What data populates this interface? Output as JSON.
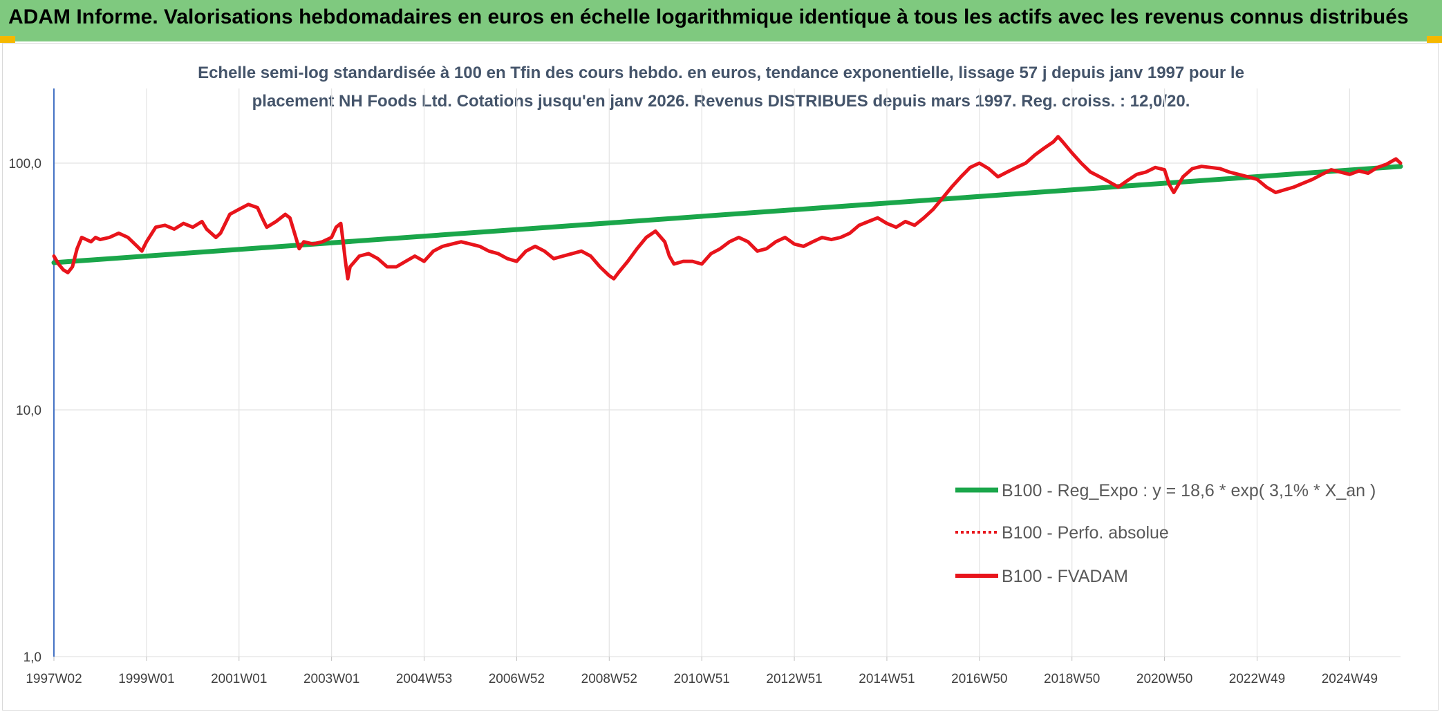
{
  "header": {
    "title": "ADAM Informe. Valorisations hebdomadaires en euros en échelle logarithmique identique à tous les actifs avec les revenus connus distribués"
  },
  "chart": {
    "subtitle_line1": "Echelle semi-log standardisée à 100 en Tfin des cours hebdo. en euros, tendance exponentielle, lissage 57 j depuis janv 1997 pour le",
    "subtitle_line2": "placement NH Foods Ltd. Cotations jusqu'en janv 2026. Revenus DISTRIBUES depuis mars 1997. Reg. croiss. : 12,0/20."
  },
  "legend": {
    "reg": "B100 - Reg_Expo : y = 18,6 * exp( 3,1% *  X_an )",
    "perf": "B100 - Perfo. absolue",
    "fvadam": "B100 - FVADAM"
  },
  "colors": {
    "green": "#1aa64a",
    "red": "#e8141b",
    "banner": "#7fc97f",
    "grid": "#d9d9d9"
  },
  "chart_data": {
    "type": "line",
    "scale": "log",
    "ylim": [
      1,
      200
    ],
    "y_ticks": [
      {
        "value": 1,
        "label": "1,0"
      },
      {
        "value": 10,
        "label": "10,0"
      },
      {
        "value": 100,
        "label": "100,0"
      }
    ],
    "x_range": [
      1997.0,
      2026.1
    ],
    "x_ticks": [
      {
        "t": 1997.0,
        "label": "1997W02"
      },
      {
        "t": 1999.0,
        "label": "1999W01"
      },
      {
        "t": 2001.0,
        "label": "2001W01"
      },
      {
        "t": 2003.0,
        "label": "2003W01"
      },
      {
        "t": 2005.0,
        "label": "2004W53"
      },
      {
        "t": 2007.0,
        "label": "2006W52"
      },
      {
        "t": 2009.0,
        "label": "2008W52"
      },
      {
        "t": 2011.0,
        "label": "2010W51"
      },
      {
        "t": 2013.0,
        "label": "2012W51"
      },
      {
        "t": 2015.0,
        "label": "2014W51"
      },
      {
        "t": 2017.0,
        "label": "2016W50"
      },
      {
        "t": 2019.0,
        "label": "2018W50"
      },
      {
        "t": 2021.0,
        "label": "2020W50"
      },
      {
        "t": 2023.0,
        "label": "2022W49"
      },
      {
        "t": 2025.0,
        "label": "2024W49"
      }
    ],
    "series": [
      {
        "name": "B100 - Reg_Expo : y = 18,6 * exp( 3,1% *  X_an )",
        "style": "trend",
        "points": [
          [
            1997.0,
            39.5
          ],
          [
            2026.1,
            97.0
          ]
        ]
      },
      {
        "name": "B100 - FVADAM",
        "style": "solid",
        "points": [
          [
            1997.0,
            42
          ],
          [
            1997.1,
            39
          ],
          [
            1997.2,
            37
          ],
          [
            1997.3,
            36
          ],
          [
            1997.4,
            38
          ],
          [
            1997.5,
            45
          ],
          [
            1997.6,
            50
          ],
          [
            1997.7,
            49
          ],
          [
            1997.8,
            48
          ],
          [
            1997.9,
            50
          ],
          [
            1998.0,
            49
          ],
          [
            1998.2,
            50
          ],
          [
            1998.4,
            52
          ],
          [
            1998.6,
            50
          ],
          [
            1998.8,
            46
          ],
          [
            1998.9,
            44
          ],
          [
            1999.0,
            48
          ],
          [
            1999.2,
            55
          ],
          [
            1999.4,
            56
          ],
          [
            1999.6,
            54
          ],
          [
            1999.8,
            57
          ],
          [
            2000.0,
            55
          ],
          [
            2000.2,
            58
          ],
          [
            2000.3,
            54
          ],
          [
            2000.5,
            50
          ],
          [
            2000.6,
            52
          ],
          [
            2000.8,
            62
          ],
          [
            2001.0,
            65
          ],
          [
            2001.2,
            68
          ],
          [
            2001.4,
            66
          ],
          [
            2001.5,
            60
          ],
          [
            2001.6,
            55
          ],
          [
            2001.8,
            58
          ],
          [
            2002.0,
            62
          ],
          [
            2002.1,
            60
          ],
          [
            2002.2,
            52
          ],
          [
            2002.3,
            45
          ],
          [
            2002.4,
            48
          ],
          [
            2002.6,
            47
          ],
          [
            2002.8,
            48
          ],
          [
            2003.0,
            50
          ],
          [
            2003.1,
            55
          ],
          [
            2003.2,
            57
          ],
          [
            2003.25,
            48
          ],
          [
            2003.3,
            40
          ],
          [
            2003.35,
            34
          ],
          [
            2003.4,
            38
          ],
          [
            2003.6,
            42
          ],
          [
            2003.8,
            43
          ],
          [
            2004.0,
            41
          ],
          [
            2004.2,
            38
          ],
          [
            2004.4,
            38
          ],
          [
            2004.6,
            40
          ],
          [
            2004.8,
            42
          ],
          [
            2005.0,
            40
          ],
          [
            2005.2,
            44
          ],
          [
            2005.4,
            46
          ],
          [
            2005.6,
            47
          ],
          [
            2005.8,
            48
          ],
          [
            2006.0,
            47
          ],
          [
            2006.2,
            46
          ],
          [
            2006.4,
            44
          ],
          [
            2006.6,
            43
          ],
          [
            2006.8,
            41
          ],
          [
            2007.0,
            40
          ],
          [
            2007.2,
            44
          ],
          [
            2007.4,
            46
          ],
          [
            2007.6,
            44
          ],
          [
            2007.8,
            41
          ],
          [
            2008.0,
            42
          ],
          [
            2008.2,
            43
          ],
          [
            2008.4,
            44
          ],
          [
            2008.6,
            42
          ],
          [
            2008.8,
            38
          ],
          [
            2009.0,
            35
          ],
          [
            2009.1,
            34
          ],
          [
            2009.2,
            36
          ],
          [
            2009.4,
            40
          ],
          [
            2009.6,
            45
          ],
          [
            2009.8,
            50
          ],
          [
            2010.0,
            53
          ],
          [
            2010.2,
            48
          ],
          [
            2010.3,
            42
          ],
          [
            2010.4,
            39
          ],
          [
            2010.6,
            40
          ],
          [
            2010.8,
            40
          ],
          [
            2011.0,
            39
          ],
          [
            2011.2,
            43
          ],
          [
            2011.4,
            45
          ],
          [
            2011.6,
            48
          ],
          [
            2011.8,
            50
          ],
          [
            2012.0,
            48
          ],
          [
            2012.2,
            44
          ],
          [
            2012.4,
            45
          ],
          [
            2012.6,
            48
          ],
          [
            2012.8,
            50
          ],
          [
            2013.0,
            47
          ],
          [
            2013.2,
            46
          ],
          [
            2013.4,
            48
          ],
          [
            2013.6,
            50
          ],
          [
            2013.8,
            49
          ],
          [
            2014.0,
            50
          ],
          [
            2014.2,
            52
          ],
          [
            2014.4,
            56
          ],
          [
            2014.6,
            58
          ],
          [
            2014.8,
            60
          ],
          [
            2015.0,
            57
          ],
          [
            2015.2,
            55
          ],
          [
            2015.4,
            58
          ],
          [
            2015.6,
            56
          ],
          [
            2015.8,
            60
          ],
          [
            2016.0,
            65
          ],
          [
            2016.2,
            72
          ],
          [
            2016.4,
            80
          ],
          [
            2016.6,
            88
          ],
          [
            2016.8,
            96
          ],
          [
            2017.0,
            100
          ],
          [
            2017.2,
            95
          ],
          [
            2017.4,
            88
          ],
          [
            2017.6,
            92
          ],
          [
            2017.8,
            96
          ],
          [
            2018.0,
            100
          ],
          [
            2018.2,
            108
          ],
          [
            2018.4,
            115
          ],
          [
            2018.6,
            122
          ],
          [
            2018.7,
            128
          ],
          [
            2018.8,
            122
          ],
          [
            2019.0,
            110
          ],
          [
            2019.2,
            100
          ],
          [
            2019.4,
            92
          ],
          [
            2019.6,
            88
          ],
          [
            2019.8,
            84
          ],
          [
            2020.0,
            80
          ],
          [
            2020.2,
            85
          ],
          [
            2020.4,
            90
          ],
          [
            2020.6,
            92
          ],
          [
            2020.8,
            96
          ],
          [
            2021.0,
            94
          ],
          [
            2021.1,
            82
          ],
          [
            2021.2,
            76
          ],
          [
            2021.4,
            88
          ],
          [
            2021.6,
            95
          ],
          [
            2021.8,
            97
          ],
          [
            2022.0,
            96
          ],
          [
            2022.2,
            95
          ],
          [
            2022.4,
            92
          ],
          [
            2022.6,
            90
          ],
          [
            2022.8,
            88
          ],
          [
            2023.0,
            86
          ],
          [
            2023.2,
            80
          ],
          [
            2023.4,
            76
          ],
          [
            2023.6,
            78
          ],
          [
            2023.8,
            80
          ],
          [
            2024.0,
            83
          ],
          [
            2024.2,
            86
          ],
          [
            2024.4,
            90
          ],
          [
            2024.6,
            94
          ],
          [
            2024.8,
            92
          ],
          [
            2025.0,
            90
          ],
          [
            2025.2,
            93
          ],
          [
            2025.4,
            91
          ],
          [
            2025.6,
            96
          ],
          [
            2025.8,
            99
          ],
          [
            2026.0,
            104
          ],
          [
            2026.1,
            100
          ]
        ]
      }
    ]
  }
}
